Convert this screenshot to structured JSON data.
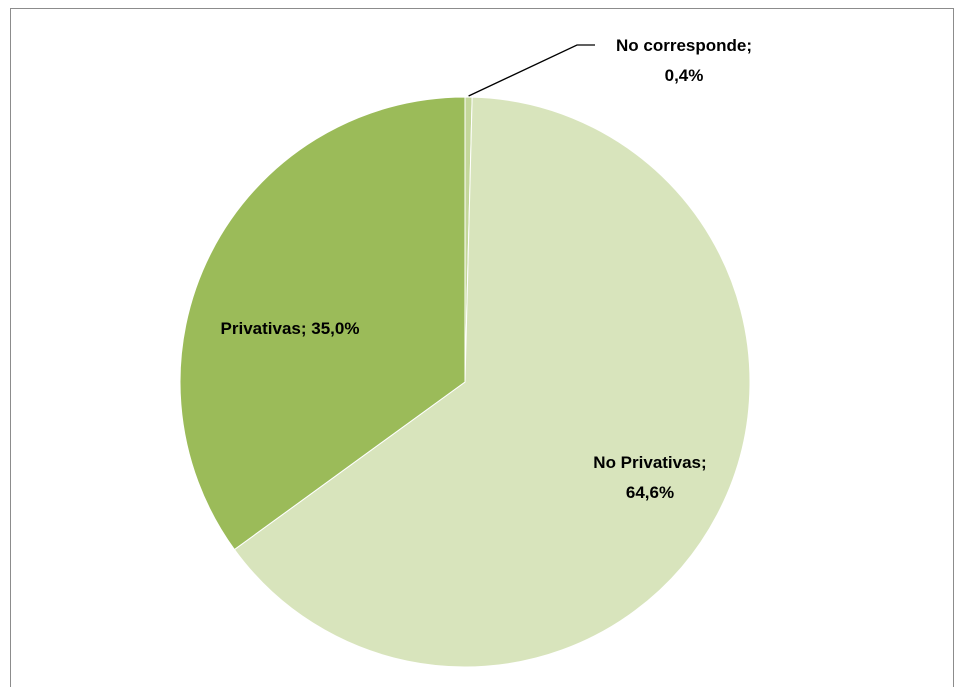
{
  "chart_data": {
    "type": "pie",
    "title": "",
    "slices": [
      {
        "label": "No corresponde",
        "value": 0.4,
        "display": "0,4%",
        "color": "#c4d79b"
      },
      {
        "label": "No Privativas",
        "value": 64.6,
        "display": "64,6%",
        "color": "#d8e4bc"
      },
      {
        "label": "Privativas",
        "value": 35.0,
        "display": "35,0%",
        "color": "#9bbb59"
      }
    ],
    "start_angle_deg": 0,
    "direction": "clockwise",
    "legend": "none",
    "data_labels": "category; percentage"
  }
}
